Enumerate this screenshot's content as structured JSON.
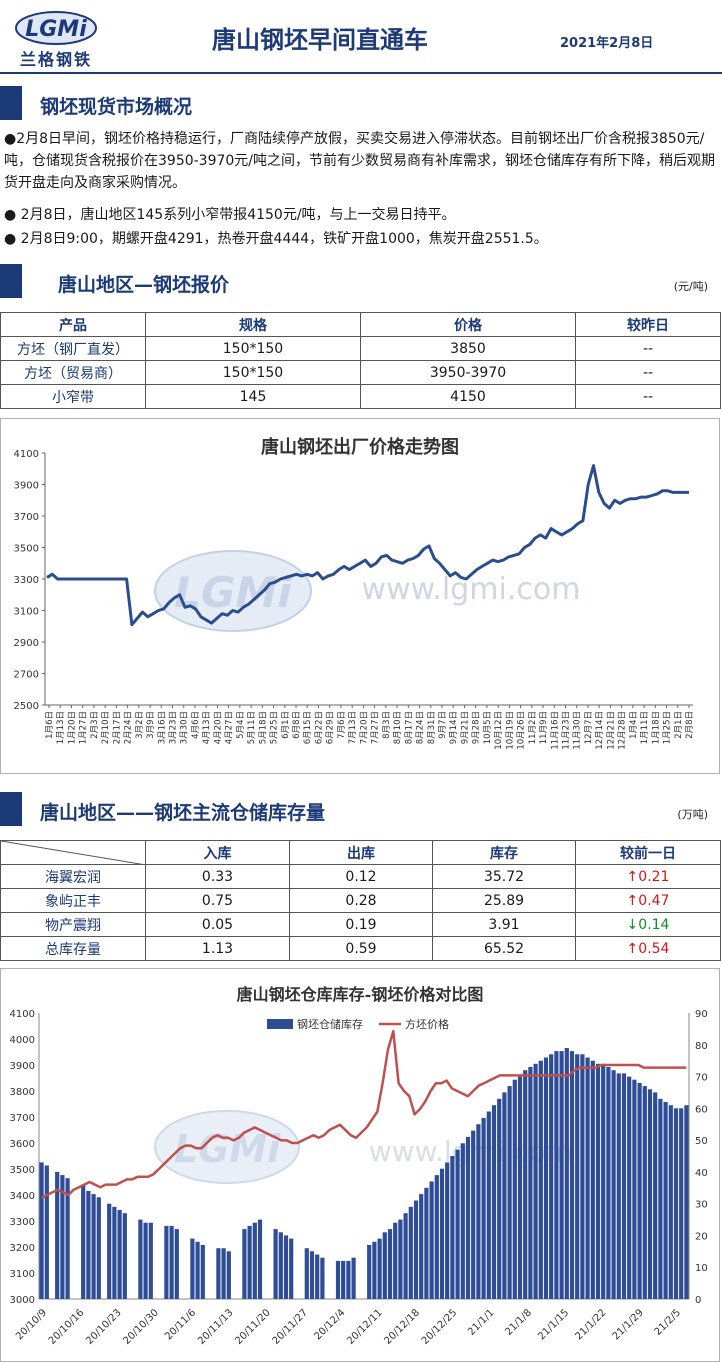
{
  "header": {
    "logo_text": "兰格钢铁",
    "logo_mark": "LGMi",
    "title": "唐山钢坯早间直通车",
    "date": "2021年2月8日"
  },
  "overview": {
    "heading": "钢坯现货市场概况",
    "paragraphs": [
      "●2月8日早间，钢坯价格持稳运行，厂商陆续停产放假，买卖交易进入停滞状态。目前钢坯出厂价含税报3850元/吨，仓储现货含税报价在3950-3970元/吨之间，节前有少数贸易商有补库需求，钢坯仓储库存有所下降，稍后观期货开盘走向及商家采购情况。",
      "● 2月8日，唐山地区145系列小窄带报4150元/吨，与上一交易日持平。",
      "● 2月8日9:00，期螺开盘4291，热卷开盘4444，铁矿开盘1000，焦炭开盘2551.5。"
    ]
  },
  "price_section": {
    "heading": "唐山地区—钢坯报价",
    "unit": "(元/吨)",
    "headers": [
      "产品",
      "规格",
      "价格",
      "较昨日"
    ],
    "rows": [
      [
        "方坯（钢厂直发）",
        "150*150",
        "3850",
        "--"
      ],
      [
        "方坯（贸易商）",
        "150*150",
        "3950-3970",
        "--"
      ],
      [
        "小窄带",
        "145",
        "4150",
        "--"
      ]
    ]
  },
  "chart1": {
    "title": "唐山钢坯出厂价格走势图",
    "watermark": "www.lgmi.com",
    "colors": {
      "line": "#2b4d8f",
      "axis": "#444444"
    }
  },
  "inventory_section": {
    "heading": "唐山地区——钢坯主流仓储库存量",
    "unit": "(万吨)",
    "headers": [
      "",
      "入库",
      "出库",
      "库存",
      "较前一日"
    ],
    "rows": [
      {
        "name": "海翼宏润",
        "in": "0.33",
        "out": "0.12",
        "stock": "35.72",
        "arrow": "↑",
        "change": "0.21",
        "dir": "up"
      },
      {
        "name": "象屿正丰",
        "in": "0.75",
        "out": "0.28",
        "stock": "25.89",
        "arrow": "↑",
        "change": "0.47",
        "dir": "up"
      },
      {
        "name": "物产震翔",
        "in": "0.05",
        "out": "0.19",
        "stock": "3.91",
        "arrow": "↓",
        "change": "0.14",
        "dir": "down"
      },
      {
        "name": "总库存量",
        "in": "1.13",
        "out": "0.59",
        "stock": "65.52",
        "arrow": "↑",
        "change": "0.54",
        "dir": "up"
      }
    ]
  },
  "chart2": {
    "title": "唐山钢坯仓库库存-钢坯价格对比图",
    "watermark": "www.lgmi.com",
    "colors": {
      "bar": "#2e4d96",
      "line": "#c0504d"
    }
  },
  "chart_data": [
    {
      "type": "line",
      "title": "唐山钢坯出厂价格走势图",
      "ylim": [
        2500,
        4100
      ],
      "yticks": [
        2500,
        2700,
        2900,
        3100,
        3300,
        3500,
        3700,
        3900,
        4100
      ],
      "xticks": [
        "1月6日",
        "1月13日",
        "1月20日",
        "1月27日",
        "2月3日",
        "2月10日",
        "2月17日",
        "2月24日",
        "3月2日",
        "3月9日",
        "3月16日",
        "3月23日",
        "3月30日",
        "4月6日",
        "4月13日",
        "4月20日",
        "4月27日",
        "5月4日",
        "5月11日",
        "5月18日",
        "5月25日",
        "6月1日",
        "6月8日",
        "6月15日",
        "6月22日",
        "6月29日",
        "7月6日",
        "7月13日",
        "7月20日",
        "7月27日",
        "8月3日",
        "8月10日",
        "8月17日",
        "8月24日",
        "8月31日",
        "9月7日",
        "9月14日",
        "9月21日",
        "9月28日",
        "10月5日",
        "10月12日",
        "10月19日",
        "10月26日",
        "11月2日",
        "11月9日",
        "11月16日",
        "11月23日",
        "11月30日",
        "12月7日",
        "12月14日",
        "12月21日",
        "12月28日",
        "1月4日",
        "1月11日",
        "1月18日",
        "1月25日",
        "2月1日",
        "2月8日"
      ],
      "series": [
        {
          "values": [
            3310,
            3330,
            3300,
            3300,
            3300,
            3300,
            3300,
            3300,
            3300,
            3300,
            3300,
            3300,
            3300,
            3300,
            3300,
            3300,
            3010,
            3050,
            3090,
            3060,
            3080,
            3100,
            3110,
            3150,
            3180,
            3200,
            3120,
            3130,
            3110,
            3060,
            3040,
            3020,
            3050,
            3080,
            3070,
            3100,
            3090,
            3120,
            3140,
            3170,
            3200,
            3230,
            3270,
            3280,
            3300,
            3310,
            3320,
            3330,
            3320,
            3330,
            3320,
            3340,
            3300,
            3320,
            3330,
            3360,
            3380,
            3360,
            3380,
            3400,
            3420,
            3380,
            3400,
            3440,
            3450,
            3420,
            3410,
            3400,
            3420,
            3430,
            3450,
            3490,
            3510,
            3430,
            3400,
            3360,
            3320,
            3340,
            3310,
            3300,
            3330,
            3360,
            3380,
            3400,
            3420,
            3410,
            3420,
            3440,
            3450,
            3460,
            3500,
            3520,
            3560,
            3580,
            3560,
            3620,
            3600,
            3580,
            3600,
            3620,
            3650,
            3670,
            3900,
            4020,
            3850,
            3780,
            3750,
            3800,
            3780,
            3800,
            3810,
            3810,
            3820,
            3820,
            3830,
            3840,
            3860,
            3860,
            3850,
            3850,
            3850,
            3850
          ]
        }
      ]
    },
    {
      "type": "bar",
      "title": "唐山钢坯仓库库存-钢坯价格对比图",
      "ylim_left": [
        3000,
        4100
      ],
      "yticks_left": [
        3000,
        3100,
        3200,
        3300,
        3400,
        3500,
        3600,
        3700,
        3800,
        3900,
        4000,
        4100
      ],
      "ylim_right": [
        0,
        90
      ],
      "yticks_right": [
        0,
        10,
        20,
        30,
        40,
        50,
        60,
        70,
        80,
        90
      ],
      "xticks": [
        "20/10/9",
        "20/10/16",
        "20/10/23",
        "20/10/30",
        "20/11/6",
        "20/11/13",
        "20/11/20",
        "20/11/27",
        "20/12/4",
        "20/12/11",
        "20/12/18",
        "20/12/25",
        "21/1/1",
        "21/1/8",
        "21/1/15",
        "21/1/22",
        "21/1/29",
        "21/2/5"
      ],
      "legend": [
        "钢坯仓储库存",
        "方坯价格"
      ],
      "series": [
        {
          "name": "钢坯仓储库存",
          "axis": "right",
          "values": [
            43,
            42,
            null,
            40,
            39,
            38,
            null,
            null,
            36,
            34,
            33,
            32,
            null,
            30,
            29,
            28,
            27,
            null,
            null,
            25,
            24,
            24,
            null,
            null,
            23,
            23,
            22,
            null,
            null,
            19,
            18,
            17,
            null,
            null,
            16,
            16,
            15,
            null,
            null,
            22,
            23,
            24,
            25,
            null,
            null,
            22,
            21,
            20,
            19,
            null,
            null,
            16,
            15,
            14,
            13,
            null,
            null,
            12,
            12,
            12,
            13,
            null,
            null,
            17,
            18,
            19,
            21,
            22,
            24,
            25,
            27,
            29,
            31,
            33,
            35,
            37,
            39,
            41,
            43,
            45,
            47,
            49,
            51,
            53,
            55,
            57,
            59,
            61,
            63,
            65,
            67,
            69,
            70,
            72,
            73,
            74,
            75,
            76,
            77,
            78,
            78,
            79,
            78,
            77,
            77,
            76,
            75,
            74,
            74,
            73,
            72,
            71,
            71,
            70,
            69,
            68,
            67,
            66,
            65,
            63,
            62,
            61,
            60,
            60,
            61
          ]
        },
        {
          "name": "方坯价格",
          "axis": "left",
          "values": [
            3390,
            3400,
            3410,
            3420,
            3410,
            3400,
            3420,
            3430,
            3440,
            3450,
            3440,
            3430,
            3440,
            3440,
            3440,
            3450,
            3460,
            3460,
            3470,
            3470,
            3470,
            3480,
            3500,
            3520,
            3540,
            3560,
            3580,
            3590,
            3590,
            3580,
            3580,
            3600,
            3620,
            3630,
            3620,
            3620,
            3610,
            3620,
            3640,
            3650,
            3660,
            3650,
            3640,
            3630,
            3620,
            3610,
            3610,
            3600,
            3600,
            3610,
            3620,
            3630,
            3620,
            3630,
            3650,
            3660,
            3670,
            3650,
            3630,
            3620,
            3640,
            3660,
            3690,
            3720,
            3830,
            3960,
            4030,
            3830,
            3800,
            3780,
            3710,
            3730,
            3760,
            3800,
            3830,
            3830,
            3840,
            3810,
            3800,
            3790,
            3780,
            3800,
            3820,
            3830,
            3840,
            3850,
            3860,
            3860,
            3860,
            3860,
            3860,
            3860,
            3860,
            3860,
            3860,
            3860,
            3860,
            3860,
            3860,
            3860,
            3880,
            3890,
            3890,
            3890,
            3890,
            3900,
            3900,
            3900,
            3900,
            3900,
            3900,
            3900,
            3900,
            3890,
            3890,
            3890,
            3890,
            3890,
            3890,
            3890,
            3890,
            3890
          ]
        }
      ]
    }
  ]
}
